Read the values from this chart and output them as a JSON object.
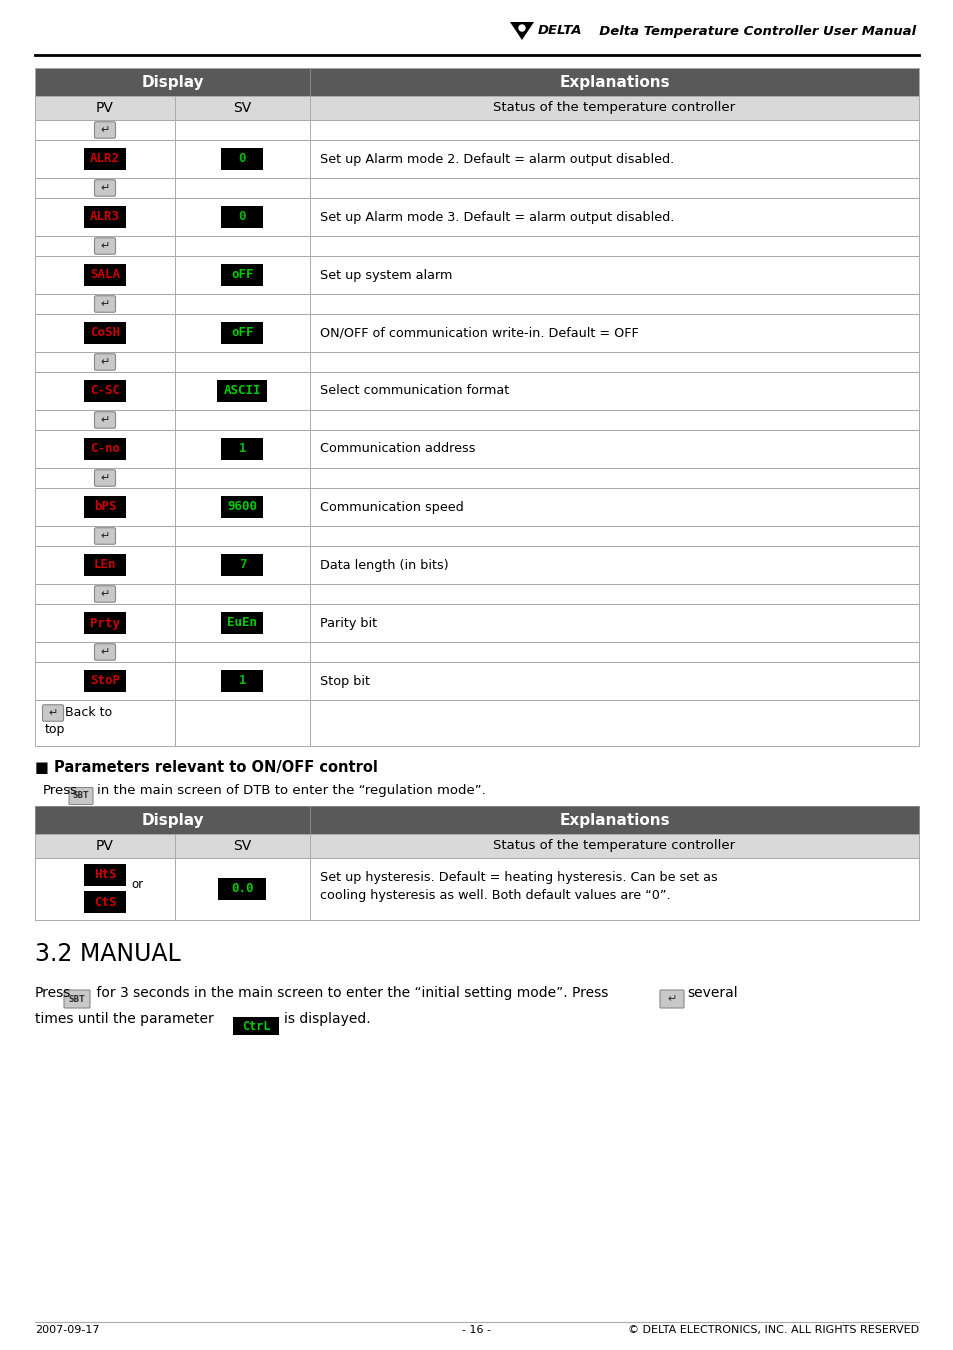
{
  "page_bg": "#ffffff",
  "header_text": "Delta Temperature Controller User Manual",
  "table_header_bg": "#595959",
  "table_header_fg": "#ffffff",
  "table_subheader_bg": "#d9d9d9",
  "lcd_red": "#cc0000",
  "lcd_green": "#00cc00",
  "entries": [
    {
      "pv": "ALR2",
      "sv": "0",
      "sv_color": "#00bb00",
      "expl": "Set up Alarm mode 2. Default = alarm output disabled."
    },
    {
      "pv": "ALR3",
      "sv": "0",
      "sv_color": "#00bb00",
      "expl": "Set up Alarm mode 3. Default = alarm output disabled."
    },
    {
      "pv": "SALA",
      "sv": "oFF",
      "sv_color": "#00cc00",
      "expl": "Set up system alarm"
    },
    {
      "pv": "CoSH",
      "sv": "oFF",
      "sv_color": "#00cc00",
      "expl": "ON/OFF of communication write-in. Default = OFF"
    },
    {
      "pv": "C-SC",
      "sv": "ASCII",
      "sv_color": "#00cc00",
      "expl": "Select communication format"
    },
    {
      "pv": "C-no",
      "sv": "1",
      "sv_color": "#00bb00",
      "expl": "Communication address"
    },
    {
      "pv": "bPS",
      "sv": "9600",
      "sv_color": "#00cc00",
      "expl": "Communication speed"
    },
    {
      "pv": "LEn",
      "sv": "7",
      "sv_color": "#00bb00",
      "expl": "Data length (in bits)"
    },
    {
      "pv": "Prty",
      "sv": "EuEn",
      "sv_color": "#00cc00",
      "expl": "Parity bit"
    },
    {
      "pv": "StoP",
      "sv": "1",
      "sv_color": "#00bb00",
      "expl": "Stop bit"
    }
  ],
  "footer_left": "2007-09-17",
  "footer_center": "- 16 -",
  "footer_right": "© DELTA ELECTRONICS, INC. ALL RIGHTS RESERVED"
}
